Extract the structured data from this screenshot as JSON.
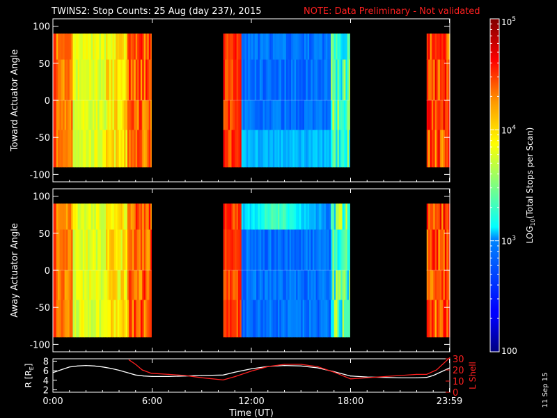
{
  "header": {
    "title": "TWINS2: Stop Counts: 25 Aug (day 237), 2015",
    "note": "NOTE: Data Preliminary - Not validated"
  },
  "footer": {
    "date_stamp": "11 Sep 15"
  },
  "colors": {
    "background": "#000000",
    "note_red": "#ff2020",
    "r_line": "#ffffff",
    "lshell_line": "#ff2020"
  },
  "chart_data": [
    {
      "type": "heatmap",
      "id": "toward",
      "ylabel": "Toward Actuator Angle",
      "xlim_hours": [
        0,
        24
      ],
      "ylim": [
        -110,
        110
      ],
      "data_ylim": [
        -90,
        90
      ],
      "yticks": [
        100,
        50,
        0,
        -50,
        -100
      ],
      "ytick_labels": [
        "100",
        "50",
        "0",
        "-50",
        "-100"
      ],
      "data_intervals_hours": [
        [
          0,
          5.95
        ],
        [
          10.3,
          17.95
        ],
        [
          22.6,
          24
        ]
      ]
    },
    {
      "type": "heatmap",
      "id": "away",
      "ylabel": "Away Actuator Angle",
      "xlim_hours": [
        0,
        24
      ],
      "ylim": [
        -110,
        110
      ],
      "data_ylim": [
        -90,
        90
      ],
      "yticks": [
        100,
        50,
        0,
        -50,
        -100
      ],
      "ytick_labels": [
        "100",
        "50",
        "0",
        "-50",
        "-100"
      ],
      "data_intervals_hours": [
        [
          0,
          5.95
        ],
        [
          10.3,
          17.95
        ],
        [
          22.6,
          24
        ]
      ]
    },
    {
      "type": "line",
      "id": "orbit",
      "xlabel": "Time (UT)",
      "xticks_hours": [
        0,
        6,
        12,
        18,
        23.98
      ],
      "xtick_labels": [
        "0:00",
        "6:00",
        "12:00",
        "18:00",
        "23:59"
      ],
      "left_axis": {
        "label": "R [R",
        "label_sub": "E",
        "label_end": "]",
        "ylim": [
          1.5,
          8.5
        ],
        "ticks": [
          8,
          6,
          4,
          2
        ],
        "tick_labels": [
          "8",
          "6",
          "4",
          "2"
        ]
      },
      "right_axis": {
        "label": "L Shell",
        "ylim": [
          0,
          30
        ],
        "ticks": [
          30,
          20,
          10,
          0
        ],
        "tick_labels": [
          "30",
          "20",
          "10",
          "0"
        ]
      },
      "series": [
        {
          "axis": "left",
          "color": "#ffffff",
          "x": [
            0,
            0.5,
            1,
            1.5,
            2,
            2.5,
            3,
            3.5,
            4,
            4.5,
            5,
            5.5,
            6,
            7,
            8,
            9,
            10.3,
            11,
            12,
            13,
            14,
            15,
            16,
            17,
            18,
            19,
            20,
            21,
            22,
            22.6,
            23,
            24
          ],
          "y": [
            5.6,
            6.2,
            6.8,
            7.0,
            7.1,
            7.0,
            6.8,
            6.5,
            6.1,
            5.6,
            5.1,
            4.9,
            4.8,
            4.8,
            4.9,
            5.0,
            5.1,
            5.7,
            6.4,
            6.9,
            7.1,
            7.0,
            6.6,
            5.8,
            4.9,
            4.7,
            4.6,
            4.5,
            4.5,
            4.6,
            5.0,
            6.6
          ]
        },
        {
          "axis": "right",
          "color": "#ff2020",
          "x": [
            4.6,
            5.0,
            5.4,
            5.95,
            7,
            8,
            9,
            10.3,
            11,
            12,
            13,
            14,
            15,
            16,
            17,
            18,
            19,
            20,
            21,
            22,
            22.6,
            23.2,
            24
          ],
          "y": [
            29,
            25,
            20,
            17,
            16,
            15,
            13,
            11,
            14,
            19,
            23,
            25,
            25,
            23,
            18,
            12,
            13,
            14,
            15,
            16,
            16,
            20,
            31
          ]
        }
      ]
    }
  ],
  "colorbar": {
    "label": "LOG",
    "label_sub": "10",
    "label_end": "(Total Stops per Scan)",
    "range_log10": [
      2,
      5
    ],
    "ticks": [
      {
        "log": 5,
        "base": "10",
        "exp": "5"
      },
      {
        "log": 4,
        "base": "10",
        "exp": "4"
      },
      {
        "log": 3,
        "base": "10",
        "exp": "3"
      },
      {
        "log": 2,
        "base": "100",
        "exp": ""
      }
    ]
  }
}
